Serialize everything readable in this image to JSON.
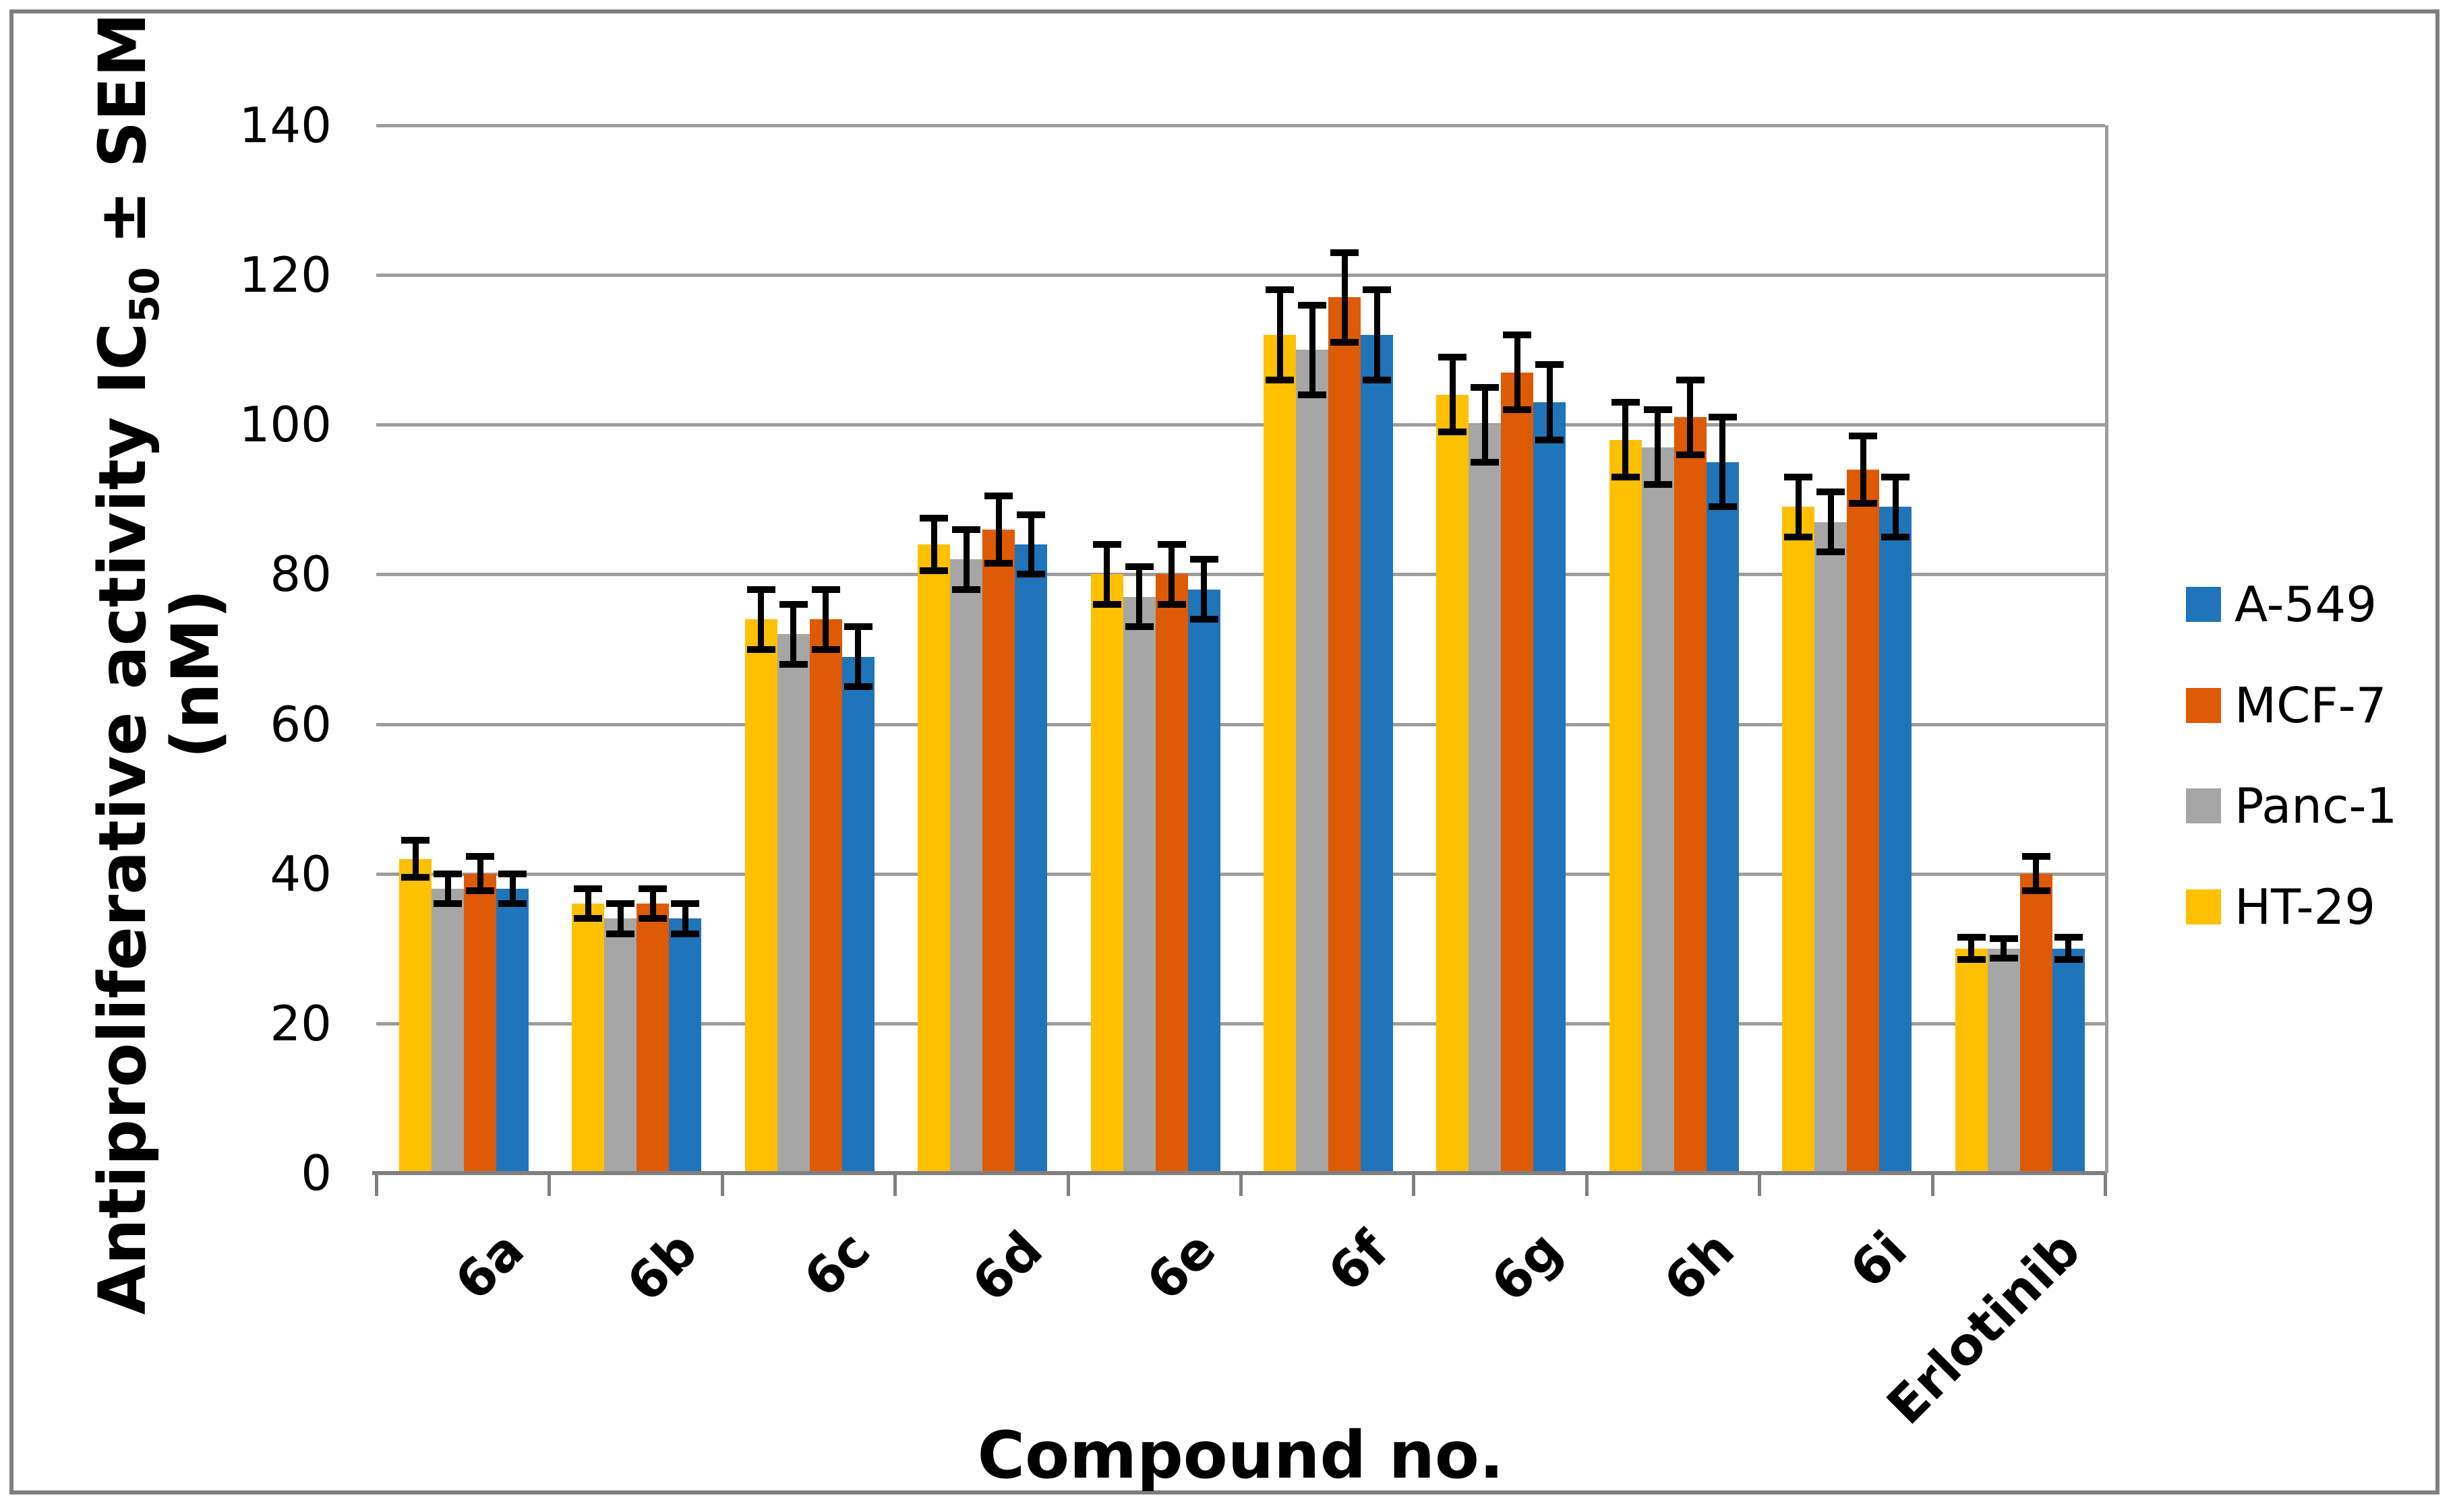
{
  "figure": {
    "y_axis_title": {
      "pre": "Antiproliferative activity IC",
      "sub": "50",
      "post": " ± SEM"
    },
    "y_axis_title_line2": "(nM)",
    "x_axis_title": "Compound no."
  },
  "chart_data": {
    "type": "bar",
    "title": "",
    "xlabel": "Compound no.",
    "ylabel": "Antiproliferative activity IC50 ± SEM (nM)",
    "ylim": [
      0,
      140
    ],
    "yticks": [
      0,
      20,
      40,
      60,
      80,
      100,
      120,
      140
    ],
    "grid": true,
    "legend_position": "right",
    "categories": [
      "6a",
      "6b",
      "6c",
      "6d",
      "6e",
      "6f",
      "6g",
      "6h",
      "6i",
      "Erlotinib"
    ],
    "series": [
      {
        "name": "HT-29",
        "color": "#FFC000",
        "values": [
          42,
          36,
          74,
          84,
          80,
          112,
          104,
          98,
          89,
          30
        ],
        "sem": [
          2.5,
          2,
          4,
          3.5,
          4,
          6,
          5,
          5,
          4,
          1.5
        ]
      },
      {
        "name": "Panc-1",
        "color": "#A6A6A6",
        "values": [
          38,
          34,
          72,
          82,
          77,
          110,
          100,
          97,
          87,
          30
        ],
        "sem": [
          2,
          2,
          4,
          4,
          4,
          6,
          5,
          5,
          4,
          1.3
        ]
      },
      {
        "name": "MCF-7",
        "color": "#DE5A05",
        "values": [
          40,
          36,
          74,
          86,
          80,
          117,
          107,
          101,
          94,
          40
        ],
        "sem": [
          2.3,
          2,
          4,
          4.5,
          4,
          6,
          5,
          5,
          4.5,
          2.3
        ]
      },
      {
        "name": "A-549",
        "color": "#1F74BA",
        "values": [
          38,
          34,
          69,
          84,
          78,
          112,
          103,
          95,
          89,
          30
        ],
        "sem": [
          2,
          2,
          4,
          4,
          4,
          6,
          5,
          6,
          4,
          1.5
        ]
      }
    ],
    "legend_order": [
      "A-549",
      "MCF-7",
      "Panc-1",
      "HT-29"
    ]
  }
}
